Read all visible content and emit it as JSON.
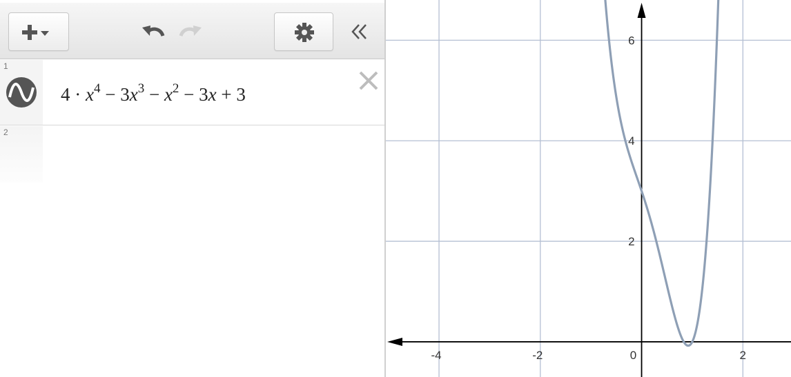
{
  "toolbar": {
    "add_icon": "plus-dropdown-icon",
    "undo_icon": "undo-icon",
    "redo_icon": "redo-icon",
    "settings_icon": "gear-icon",
    "collapse_icon": "double-chevron-left-icon"
  },
  "expressions": [
    {
      "number": "1",
      "icon": "function-wave-icon",
      "parts": {
        "c1": "4",
        "dot": " · ",
        "x1": "x",
        "e1": "4",
        "m1": " − 3",
        "x2": "x",
        "e2": "3",
        "m2": " − ",
        "x3": "x",
        "e3": "2",
        "m3": " − 3",
        "x4": "x",
        "m4": " + 3"
      }
    },
    {
      "number": "2"
    }
  ],
  "colors": {
    "curve": "#8e9fb5",
    "grid": "#b4bfd3",
    "axis": "#000000"
  },
  "chart_data": {
    "type": "line",
    "series": [
      {
        "expression": "4x^4 - 3x^3 - x^2 - 3x + 3"
      }
    ],
    "xlim": [
      -5.05,
      2.95
    ],
    "ylim": [
      -0.7,
      6.8
    ],
    "x_ticks": [
      "-4",
      "-2",
      "0",
      "2"
    ],
    "y_ticks": [
      "2",
      "4",
      "6"
    ],
    "grid": true
  }
}
